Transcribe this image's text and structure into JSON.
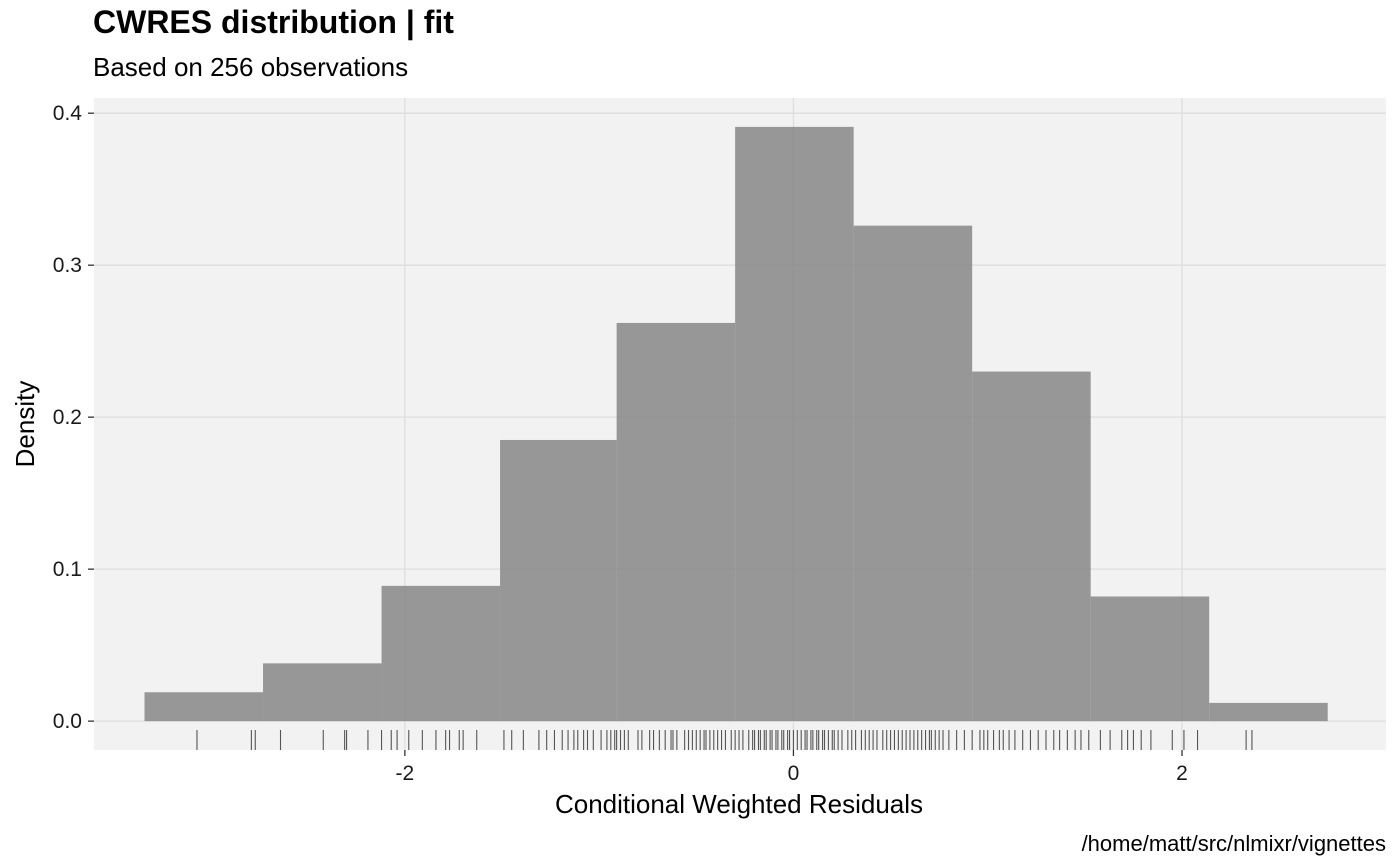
{
  "chart_data": {
    "type": "bar",
    "title": "CWRES distribution | fit",
    "subtitle": "Based on 256 observations",
    "xlabel": "Conditional Weighted Residuals",
    "ylabel": "Density",
    "caption": "/home/matt/src/nlmixr/vignettes",
    "xlim": [
      -3.6,
      3.05
    ],
    "ylim": [
      -0.019,
      0.41
    ],
    "x_ticks": [
      -2,
      0,
      2
    ],
    "x_tick_labels": [
      "-2",
      "0",
      "2"
    ],
    "y_ticks": [
      0.0,
      0.1,
      0.2,
      0.3,
      0.4
    ],
    "y_tick_labels": [
      "0.0",
      "0.1",
      "0.2",
      "0.3",
      "0.4"
    ],
    "grid": true,
    "bar_color": "#808080",
    "panel_color": "#f2f2f2",
    "grid_color": "#dedede",
    "rug_color": "#555555",
    "bins": [
      {
        "x0": -3.34,
        "x1": -2.73,
        "density": 0.019
      },
      {
        "x0": -2.73,
        "x1": -2.12,
        "density": 0.038
      },
      {
        "x0": -2.12,
        "x1": -1.51,
        "density": 0.089
      },
      {
        "x0": -1.51,
        "x1": -0.91,
        "density": 0.185
      },
      {
        "x0": -0.91,
        "x1": -0.3,
        "density": 0.262
      },
      {
        "x0": -0.3,
        "x1": 0.31,
        "density": 0.391
      },
      {
        "x0": 0.31,
        "x1": 0.92,
        "density": 0.326
      },
      {
        "x0": 0.92,
        "x1": 1.53,
        "density": 0.23
      },
      {
        "x0": 1.53,
        "x1": 2.14,
        "density": 0.082
      },
      {
        "x0": 2.14,
        "x1": 2.75,
        "density": 0.012
      }
    ],
    "rug": [
      -3.07,
      -2.79,
      -2.77,
      -2.64,
      -2.42,
      -2.31,
      -2.3,
      -2.19,
      -2.12,
      -2.07,
      -2.04,
      -1.98,
      -1.91,
      -1.84,
      -1.79,
      -1.77,
      -1.72,
      -1.7,
      -1.63,
      -1.49,
      -1.45,
      -1.39,
      -1.31,
      -1.27,
      -1.23,
      -1.19,
      -1.16,
      -1.13,
      -1.11,
      -1.08,
      -1.06,
      -1.03,
      -0.99,
      -0.96,
      -0.94,
      -0.92,
      -0.91,
      -0.89,
      -0.87,
      -0.85,
      -0.8,
      -0.78,
      -0.74,
      -0.72,
      -0.69,
      -0.66,
      -0.63,
      -0.62,
      -0.6,
      -0.56,
      -0.54,
      -0.52,
      -0.5,
      -0.48,
      -0.46,
      -0.45,
      -0.43,
      -0.41,
      -0.39,
      -0.37,
      -0.35,
      -0.32,
      -0.3,
      -0.28,
      -0.26,
      -0.23,
      -0.21,
      -0.2,
      -0.18,
      -0.17,
      -0.15,
      -0.14,
      -0.12,
      -0.11,
      -0.09,
      -0.08,
      -0.06,
      -0.05,
      -0.03,
      -0.02,
      0.0,
      0.02,
      0.04,
      0.06,
      0.07,
      0.09,
      0.1,
      0.12,
      0.13,
      0.15,
      0.16,
      0.18,
      0.2,
      0.21,
      0.23,
      0.25,
      0.28,
      0.3,
      0.32,
      0.35,
      0.37,
      0.39,
      0.41,
      0.43,
      0.46,
      0.48,
      0.5,
      0.52,
      0.54,
      0.56,
      0.58,
      0.6,
      0.62,
      0.64,
      0.66,
      0.68,
      0.7,
      0.71,
      0.73,
      0.75,
      0.77,
      0.8,
      0.84,
      0.88,
      0.92,
      0.96,
      0.98,
      1.0,
      1.03,
      1.06,
      1.08,
      1.11,
      1.14,
      1.18,
      1.22,
      1.26,
      1.3,
      1.34,
      1.37,
      1.41,
      1.45,
      1.48,
      1.52,
      1.58,
      1.63,
      1.69,
      1.72,
      1.75,
      1.79,
      1.84,
      1.95,
      2.01,
      2.08,
      2.33,
      2.36
    ]
  }
}
